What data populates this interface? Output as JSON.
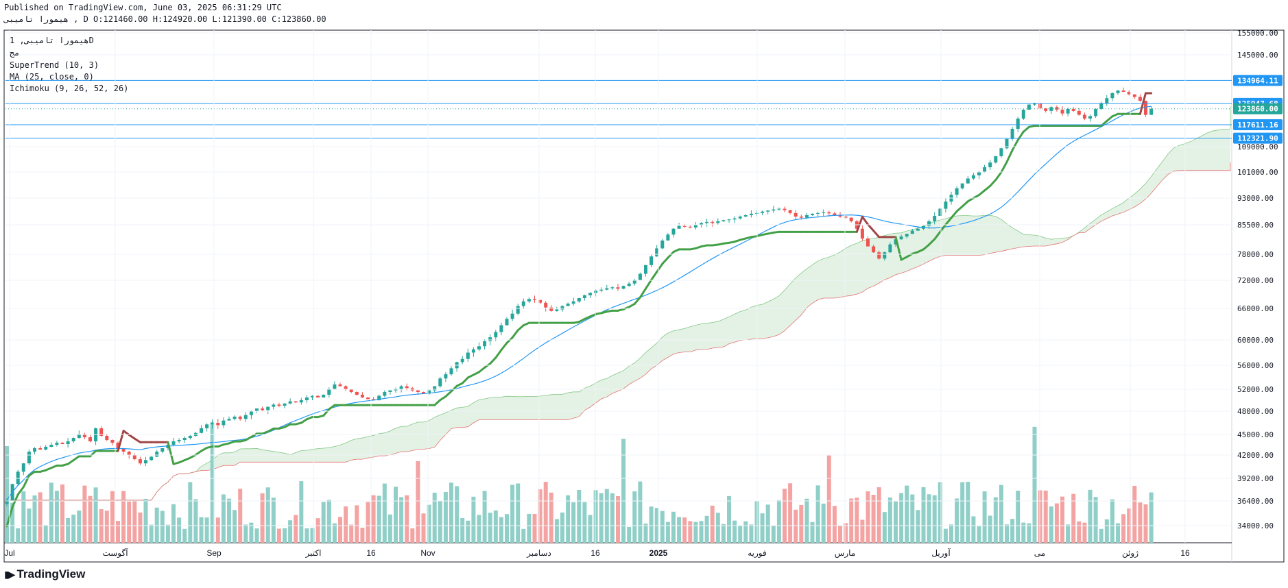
{
  "header": {
    "line1": "Published on TradingView.com, June 03, 2025 06:31:29 UTC",
    "line2": "هیمورا تامیبی , D O:121460.00 H:124920.00 L:121390.00 C:123860.00"
  },
  "legend": {
    "symbol": "هیمورا تامیبی, 1D",
    "exchange": "مج",
    "supertrend": "SuperTrend (10, 3)",
    "ma": "MA (25, close, 0)",
    "ichimoku": "Ichimoku (9, 26, 52, 26)"
  },
  "brand": "TradingView",
  "colors": {
    "up": "#26a69a",
    "down": "#ef5350",
    "st_up": "#43a047",
    "st_down": "#a04545",
    "ma": "#2196f3",
    "cloud_green": "#c8e6c9",
    "cloud_red": "#ffcdd2",
    "hline": "#2196f3",
    "price_label": "#26a69a"
  },
  "chart_data": {
    "type": "candlestick",
    "y_ticks": [
      "155000.00",
      "145000.00",
      "109000.00",
      "101000.00",
      "93000.00",
      "85500.00",
      "78000.00",
      "72000.00",
      "66000.00",
      "60000.00",
      "56000.00",
      "52000.00",
      "48000.00",
      "45000.00",
      "42000.00",
      "39200.00",
      "36400.00",
      "34000.00"
    ],
    "x_ticks": [
      "Jul",
      "آگوست",
      "Sep",
      "اکتبر",
      "16",
      "Nov",
      "دسامبر",
      "16",
      "2025",
      "فوریه",
      "مارس",
      "آوریل",
      "می",
      "ژوئن",
      "16"
    ],
    "horizontal_levels": [
      {
        "label": "134964.11",
        "value": 134964.11
      },
      {
        "label": "125947.68",
        "value": 125947.68
      },
      {
        "label": "117611.16",
        "value": 117611.16
      },
      {
        "label": "112321.90",
        "value": 112321.9
      }
    ],
    "last_price": {
      "label": "123860.00",
      "value": 123860.0
    },
    "ohlc_last": {
      "open": 121460,
      "high": 124920,
      "low": 121390,
      "close": 123860
    },
    "closes": [
      36500,
      38500,
      40000,
      41000,
      42500,
      43000,
      42800,
      43200,
      43500,
      43800,
      43600,
      44000,
      44500,
      45000,
      44600,
      44000,
      45800,
      44800,
      44200,
      43800,
      43000,
      42500,
      42000,
      41500,
      41000,
      41400,
      41800,
      42500,
      43000,
      43500,
      44000,
      44200,
      44500,
      44800,
      45200,
      45800,
      46300,
      46500,
      46200,
      46800,
      47000,
      47300,
      47000,
      47500,
      48000,
      48500,
      48200,
      48800,
      49200,
      49000,
      49400,
      49800,
      49600,
      50000,
      50500,
      50800,
      50500,
      51000,
      52000,
      52800,
      52500,
      52000,
      51500,
      51000,
      50500,
      50200,
      50000,
      50800,
      51500,
      51800,
      52000,
      52500,
      52200,
      51800,
      51500,
      51200,
      51800,
      52500,
      53800,
      54500,
      55500,
      56500,
      57000,
      58000,
      58500,
      59000,
      59800,
      60500,
      61500,
      62800,
      64000,
      65000,
      66500,
      67500,
      68000,
      67800,
      67200,
      66200,
      65500,
      65800,
      66500,
      67000,
      67500,
      68200,
      68800,
      69300,
      69800,
      70000,
      70300,
      70500,
      70200,
      70800,
      71300,
      72000,
      73500,
      75500,
      77500,
      79500,
      81500,
      83000,
      84500,
      85200,
      85000,
      84800,
      85500,
      86000,
      86300,
      86000,
      86500,
      86800,
      87000,
      87300,
      87800,
      88200,
      88600,
      88800,
      89200,
      89500,
      89800,
      90000,
      89600,
      88800,
      87800,
      87500,
      88200,
      88600,
      88800,
      89000,
      88700,
      88200,
      87800,
      87500,
      86500,
      84500,
      82000,
      80000,
      78500,
      77000,
      78500,
      80500,
      81800,
      82500,
      83200,
      84000,
      84500,
      85200,
      86500,
      88000,
      90000,
      92000,
      94000,
      96000,
      97500,
      99000,
      100000,
      101000,
      102500,
      104000,
      106000,
      108500,
      112000,
      116000,
      120000,
      123500,
      125500,
      126000,
      124000,
      123000,
      124500,
      123500,
      122000,
      123800,
      123000,
      121500,
      120000,
      121000,
      123800,
      126000,
      128000,
      130000,
      131000,
      130500,
      129500,
      128500,
      127000,
      121460,
      123860
    ],
    "volume_bar_count": 207
  }
}
